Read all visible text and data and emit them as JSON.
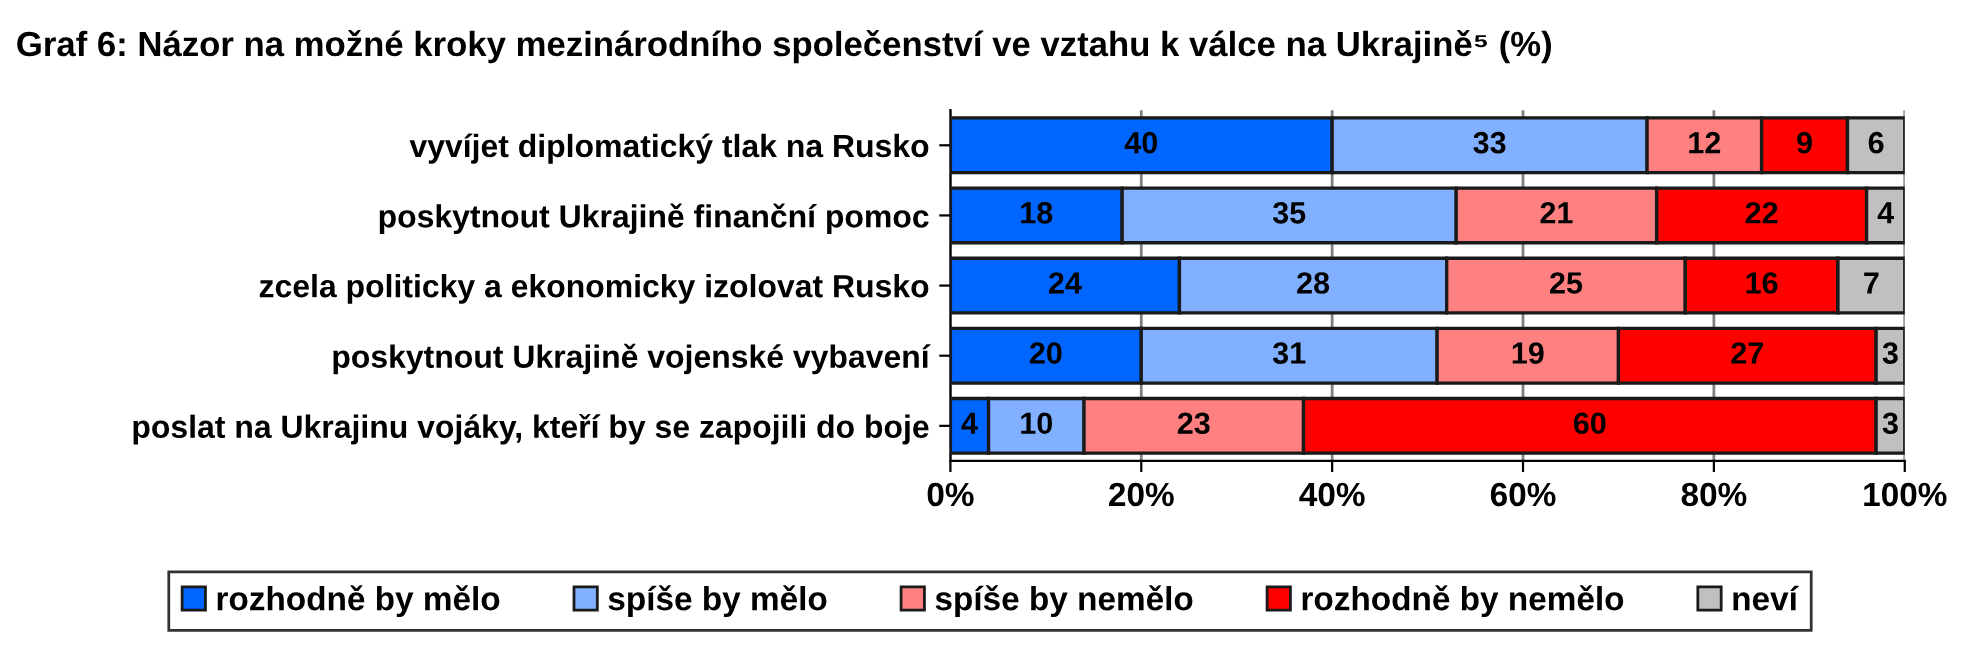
{
  "chart_data": {
    "type": "bar",
    "orientation": "horizontal",
    "stacked": true,
    "title": "Graf 6: Názor na možné kroky mezinárodního společenství ve vztahu k válce na Ukrajině⁵ (%)",
    "categories": [
      "vyvíjet diplomatický tlak na Rusko",
      "poskytnout Ukrajině finanční pomoc",
      "zcela politicky a ekonomicky izolovat Rusko",
      "poskytnout Ukrajině vojenské vybavení",
      "poslat na Ukrajinu vojáky, kteří by se zapojili do boje"
    ],
    "series": [
      {
        "name": "rozhodně by mělo",
        "color": "#0066ff",
        "values": [
          40,
          18,
          24,
          20,
          4
        ]
      },
      {
        "name": "spíše by mělo",
        "color": "#80b0ff",
        "values": [
          33,
          35,
          28,
          31,
          10
        ]
      },
      {
        "name": "spíše by nemělo",
        "color": "#ff8080",
        "values": [
          12,
          21,
          25,
          19,
          23
        ]
      },
      {
        "name": "rozhodně by nemělo",
        "color": "#ff0000",
        "values": [
          9,
          22,
          16,
          27,
          60
        ]
      },
      {
        "name": "neví",
        "color": "#c0c0c0",
        "values": [
          6,
          4,
          7,
          3,
          3
        ]
      }
    ],
    "xlim": [
      0,
      100
    ],
    "xticks": [
      {
        "value": 0,
        "label": "0%"
      },
      {
        "value": 20,
        "label": "20%"
      },
      {
        "value": 40,
        "label": "40%"
      },
      {
        "value": 60,
        "label": "60%"
      },
      {
        "value": 80,
        "label": "80%"
      },
      {
        "value": 100,
        "label": "100%"
      }
    ],
    "grid": "x",
    "legend": "bottom",
    "data_labels": true
  }
}
